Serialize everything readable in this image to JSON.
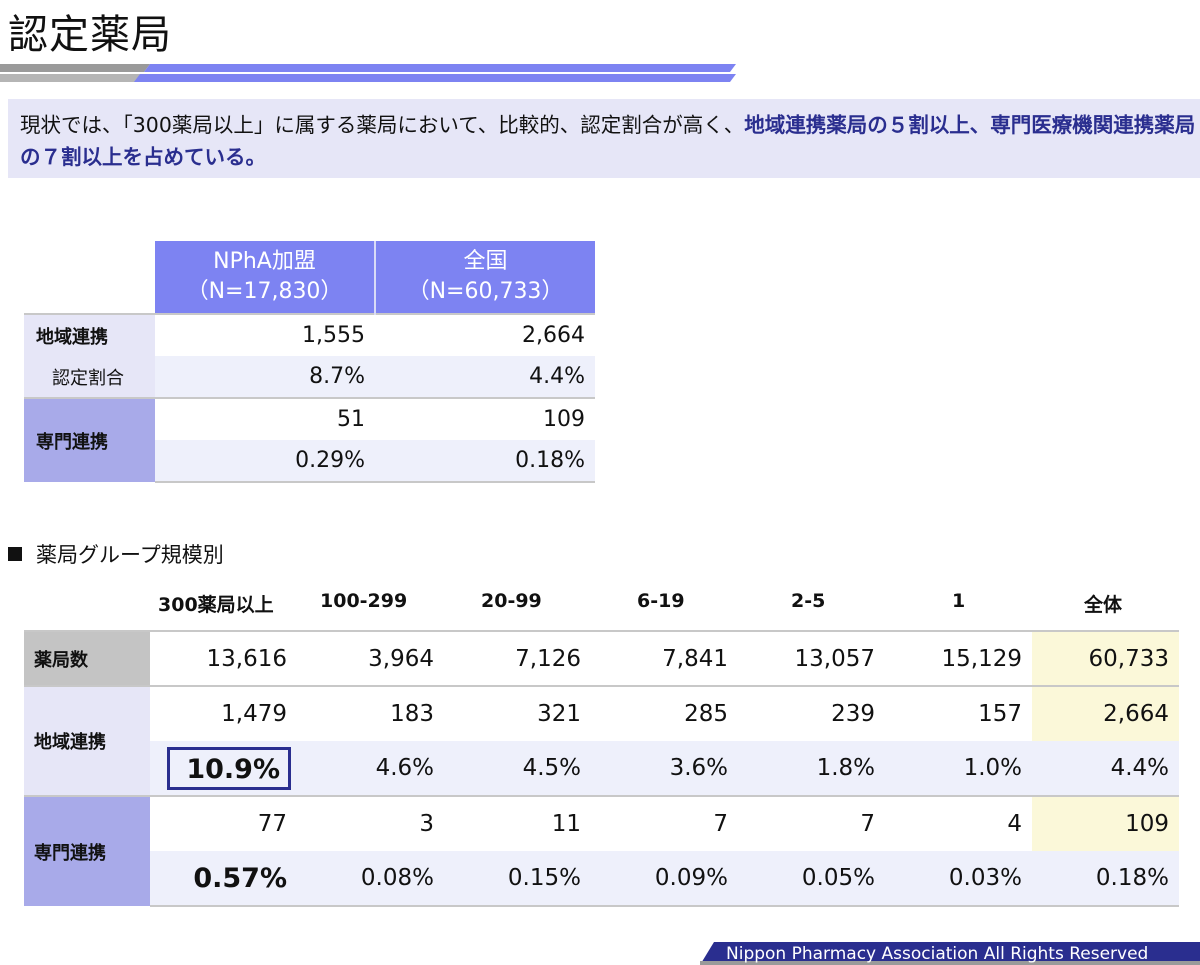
{
  "page": {
    "title": "認定薬局",
    "summary_plain": "現状では、「300薬局以上」に属する薬局において、比較的、認定割合が高く、",
    "summary_highlight": "地域連携薬局の５割以上、専門医療機関連携薬局の７割以上を占めている。",
    "footer": "Nippon Pharmacy Association All Rights Reserved"
  },
  "colors": {
    "accent": "#7d83f2",
    "highlight_text": "#2a2e8f",
    "summary_bg": "#e6e6f7",
    "total_bg": "#fbf8d9"
  },
  "table1": {
    "headers": [
      {
        "line1": "NPhA加盟",
        "line2": "（N=17,830）"
      },
      {
        "line1": "全国",
        "line2": "（N=60,733）"
      }
    ],
    "rows": [
      {
        "label": "地域連携",
        "values": [
          "1,555",
          "2,664"
        ]
      },
      {
        "label": "認定割合",
        "values": [
          "8.7%",
          "4.4%"
        ]
      },
      {
        "label": "専門連携",
        "values": [
          "51",
          "109"
        ]
      },
      {
        "label": "",
        "values": [
          "0.29%",
          "0.18%"
        ]
      }
    ]
  },
  "section_label": "薬局グループ規模別",
  "table2": {
    "columns": [
      "300薬局以上",
      "100-299",
      "20-99",
      "6-19",
      "2-5",
      "1",
      "全体"
    ],
    "rows": [
      {
        "label": "薬局数",
        "values": [
          "13,616",
          "3,964",
          "7,126",
          "7,841",
          "13,057",
          "15,129",
          "60,733"
        ]
      },
      {
        "label": "地域連携",
        "values": [
          "1,479",
          "183",
          "321",
          "285",
          "239",
          "157",
          "2,664"
        ]
      },
      {
        "label": "",
        "values": [
          "10.9%",
          "4.6%",
          "4.5%",
          "3.6%",
          "1.8%",
          "1.0%",
          "4.4%"
        ]
      },
      {
        "label": "専門連携",
        "values": [
          "77",
          "3",
          "11",
          "7",
          "7",
          "4",
          "109"
        ]
      },
      {
        "label": "",
        "values": [
          "0.57%",
          "0.08%",
          "0.15%",
          "0.09%",
          "0.05%",
          "0.03%",
          "0.18%"
        ]
      }
    ]
  }
}
